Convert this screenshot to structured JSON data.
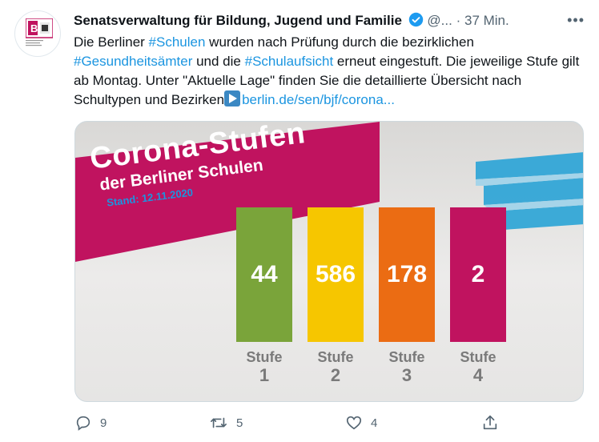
{
  "tweet": {
    "author_name": "Senatsverwaltung für Bildung, Jugend und Familie",
    "handle": "@...",
    "separator": "·",
    "time": "37 Min.",
    "more_label": "•••",
    "avatar_letter": "B",
    "text": {
      "p1": "Die Berliner ",
      "h1": "#Schulen",
      "p2": " wurden nach Prüfung durch die bezirklichen ",
      "h2": "#Gesundheitsämter",
      "p3": " und die ",
      "h3": "#Schulaufsicht",
      "p4": " erneut eingestuft. Die jeweilige Stufe gilt ab Montag. Unter \"Aktuelle Lage\" finden Sie die detaillierte Übersicht nach Schultypen und Bezirken",
      "link": "berlin.de/sen/bjf/corona..."
    }
  },
  "card": {
    "title": "Corona-Stufen",
    "subtitle": "der Berliner Schulen",
    "stand": "Stand: 12.11.2020",
    "stufe_label": "Stufe",
    "levels": [
      {
        "count": "44",
        "level": "1",
        "color": "#7aa43a"
      },
      {
        "count": "586",
        "level": "2",
        "color": "#f6c600"
      },
      {
        "count": "178",
        "level": "3",
        "color": "#eb6c13"
      },
      {
        "count": "2",
        "level": "4",
        "color": "#c0135f"
      }
    ],
    "banner_color": "#c0135f",
    "building_color": "#2aa4d6"
  },
  "actions": {
    "replies": "9",
    "retweets": "5",
    "likes": "4"
  }
}
